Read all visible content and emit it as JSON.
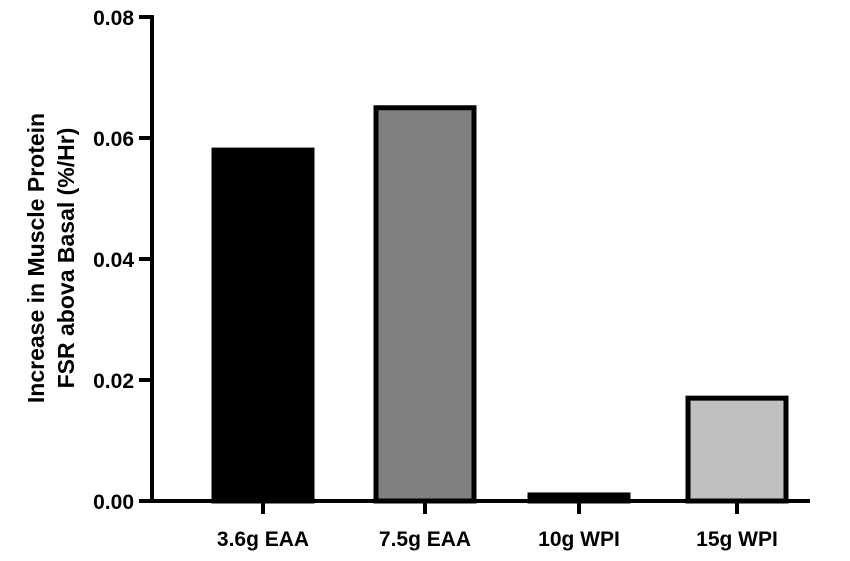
{
  "chart_data": {
    "type": "bar",
    "categories": [
      "3.6g EAA",
      "7.5g EAA",
      "10g WPI",
      "15g WPI"
    ],
    "values": [
      0.058,
      0.065,
      0.001,
      0.017
    ],
    "ylabel_lines": [
      "Increase in Muscle Protein",
      "FSR abova Basal (%/Hr)"
    ],
    "xlabel": "",
    "title": "",
    "ylim": [
      0,
      0.08
    ],
    "yticks": [
      "0.00",
      "0.02",
      "0.04",
      "0.06",
      "0.08"
    ],
    "bar_colors": [
      "#000000",
      "#808080",
      "#000000",
      "#c0c0c0"
    ],
    "bar_edge_color": "#000000",
    "grid": false,
    "legend": "none"
  }
}
